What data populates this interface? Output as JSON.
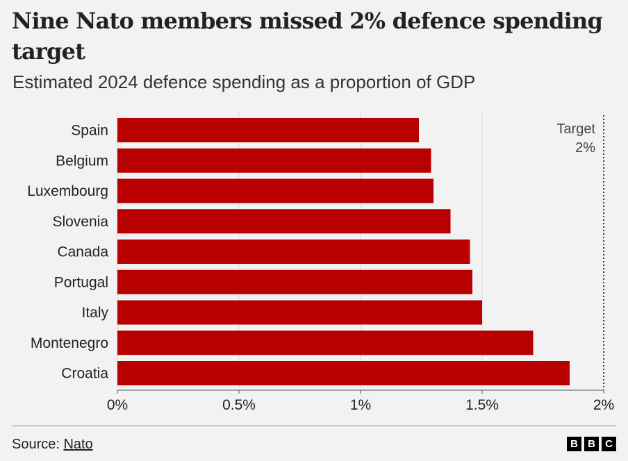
{
  "title": "Nine Nato members missed 2% defence spending target",
  "subtitle": "Estimated 2024 defence spending as a proportion of GDP",
  "chart_data": {
    "type": "bar",
    "orientation": "horizontal",
    "categories": [
      "Spain",
      "Belgium",
      "Luxembourg",
      "Slovenia",
      "Canada",
      "Portugal",
      "Italy",
      "Montenegro",
      "Croatia"
    ],
    "values": [
      1.24,
      1.29,
      1.3,
      1.37,
      1.45,
      1.46,
      1.5,
      1.71,
      1.86
    ],
    "xlim": [
      0,
      2
    ],
    "xticks": [
      0,
      0.5,
      1,
      1.5,
      2
    ],
    "xtick_labels": [
      "0%",
      "0.5%",
      "1%",
      "1.5%",
      "2%"
    ],
    "grid": true,
    "bar_color": "#b80000",
    "reference_line": {
      "value": 2,
      "style": "dotted",
      "label_lines": [
        "Target",
        "2%"
      ]
    }
  },
  "footer": {
    "source_prefix": "Source: ",
    "source_link": "Nato",
    "logo_letters": [
      "B",
      "B",
      "C"
    ]
  }
}
